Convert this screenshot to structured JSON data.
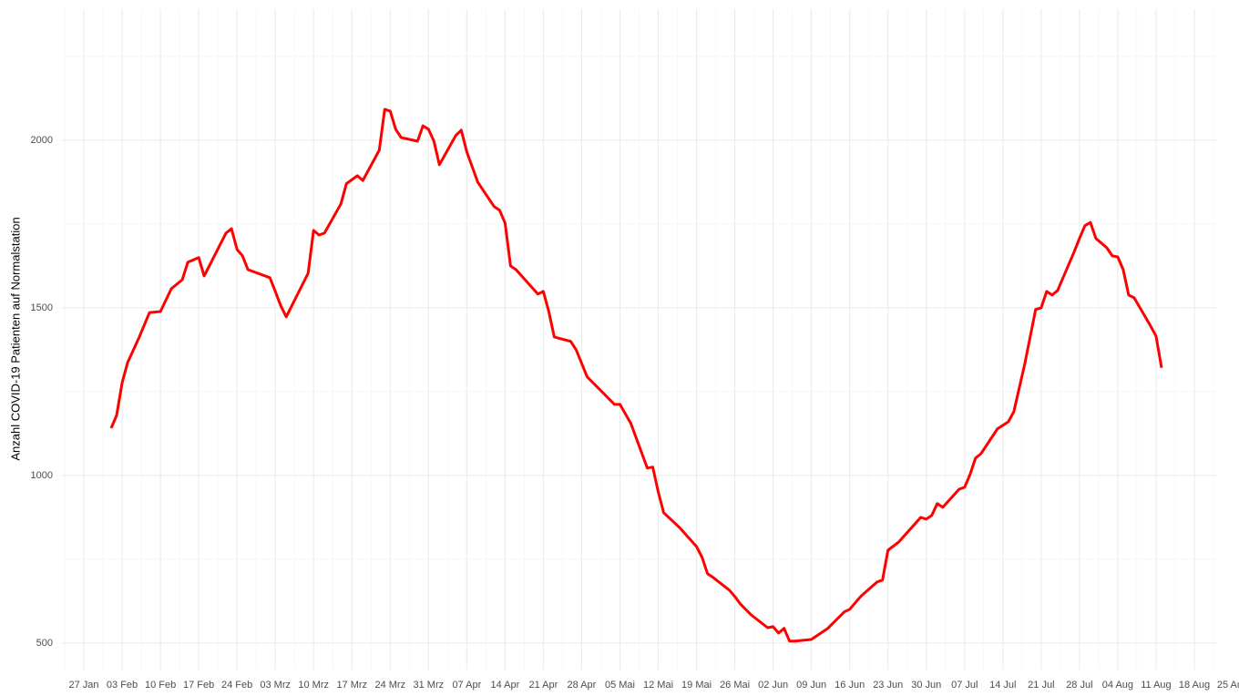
{
  "chart_data": {
    "type": "line",
    "y_label": "Anzahl COVID-19 Patienten auf Normalstation",
    "color": "#ff0000",
    "grid": true,
    "ylim": [
      421,
      2391
    ],
    "yticks": [
      500,
      1000,
      1500,
      2000
    ],
    "xlim": [
      "23 Jan",
      "22 Aug"
    ],
    "xticks": [
      "27 Jan",
      "03 Feb",
      "10 Feb",
      "17 Feb",
      "24 Feb",
      "03 Mrz",
      "10 Mrz",
      "17 Mrz",
      "24 Mrz",
      "31 Mrz",
      "07 Apr",
      "14 Apr",
      "21 Apr",
      "28 Apr",
      "05 Mai",
      "12 Mai",
      "19 Mai",
      "26 Mai",
      "02 Jun",
      "09 Jun",
      "16 Jun",
      "23 Jun",
      "30 Jun",
      "07 Jul",
      "14 Jul",
      "21 Jul",
      "28 Jul",
      "04 Aug",
      "11 Aug",
      "18 Aug",
      "25 Aug"
    ],
    "x": [
      "01 Feb",
      "02 Feb",
      "03 Feb",
      "04 Feb",
      "06 Feb",
      "08 Feb",
      "10 Feb",
      "12 Feb",
      "14 Feb",
      "15 Feb",
      "17 Feb",
      "18 Feb",
      "22 Feb",
      "23 Feb",
      "24 Feb",
      "25 Feb",
      "26 Feb",
      "02 Mrz",
      "03 Mrz",
      "04 Mrz",
      "05 Mrz",
      "09 Mrz",
      "10 Mrz",
      "11 Mrz",
      "12 Mrz",
      "15 Mrz",
      "16 Mrz",
      "18 Mrz",
      "19 Mrz",
      "22 Mrz",
      "23 Mrz",
      "24 Mrz",
      "25 Mrz",
      "26 Mrz",
      "29 Mrz",
      "30 Mrz",
      "31 Mrz",
      "01 Apr",
      "02 Apr",
      "05 Apr",
      "06 Apr",
      "07 Apr",
      "09 Apr",
      "12 Apr",
      "13 Apr",
      "14 Apr",
      "15 Apr",
      "16 Apr",
      "20 Apr",
      "21 Apr",
      "22 Apr",
      "23 Apr",
      "26 Apr",
      "27 Apr",
      "29 Apr",
      "02 Mai",
      "04 Mai",
      "05 Mai",
      "07 Mai",
      "10 Mai",
      "11 Mai",
      "12 Mai",
      "13 Mai",
      "16 Mai",
      "19 Mai",
      "20 Mai",
      "21 Mai",
      "22 Mai",
      "25 Mai",
      "26 Mai",
      "27 Mai",
      "29 Mai",
      "01 Jun",
      "02 Jun",
      "03 Jun",
      "04 Jun",
      "05 Jun",
      "06 Jun",
      "09 Jun",
      "12 Jun",
      "15 Jun",
      "16 Jun",
      "18 Jun",
      "21 Jun",
      "22 Jun",
      "23 Jun",
      "25 Jun",
      "29 Jun",
      "30 Jun",
      "01 Jul",
      "02 Jul",
      "03 Jul",
      "06 Jul",
      "07 Jul",
      "08 Jul",
      "09 Jul",
      "10 Jul",
      "13 Jul",
      "15 Jul",
      "16 Jul",
      "18 Jul",
      "20 Jul",
      "21 Jul",
      "22 Jul",
      "23 Jul",
      "24 Jul",
      "27 Jul",
      "28 Jul",
      "29 Jul",
      "30 Jul",
      "31 Jul",
      "02 Aug",
      "03 Aug",
      "04 Aug",
      "05 Aug",
      "06 Aug",
      "07 Aug",
      "10 Aug",
      "11 Aug",
      "12 Aug"
    ],
    "values": [
      1141,
      1179,
      1277,
      1337,
      1408,
      1486,
      1489,
      1557,
      1584,
      1636,
      1650,
      1595,
      1723,
      1736,
      1674,
      1655,
      1614,
      1590,
      1549,
      1506,
      1473,
      1603,
      1731,
      1717,
      1723,
      1810,
      1870,
      1894,
      1880,
      1970,
      2092,
      2087,
      2033,
      2008,
      1997,
      2043,
      2033,
      1997,
      1927,
      2014,
      2030,
      1965,
      1875,
      1802,
      1791,
      1753,
      1625,
      1614,
      1541,
      1549,
      1489,
      1413,
      1400,
      1375,
      1294,
      1245,
      1212,
      1212,
      1155,
      1022,
      1025,
      951,
      889,
      843,
      788,
      756,
      707,
      696,
      658,
      639,
      617,
      584,
      546,
      549,
      530,
      544,
      506,
      506,
      511,
      544,
      593,
      601,
      639,
      682,
      688,
      777,
      802,
      875,
      870,
      881,
      916,
      905,
      959,
      965,
      1003,
      1052,
      1065,
      1139,
      1160,
      1190,
      1332,
      1495,
      1500,
      1549,
      1538,
      1552,
      1666,
      1707,
      1745,
      1755,
      1707,
      1679,
      1655,
      1652,
      1614,
      1538,
      1530,
      1446,
      1416,
      1321
    ]
  }
}
